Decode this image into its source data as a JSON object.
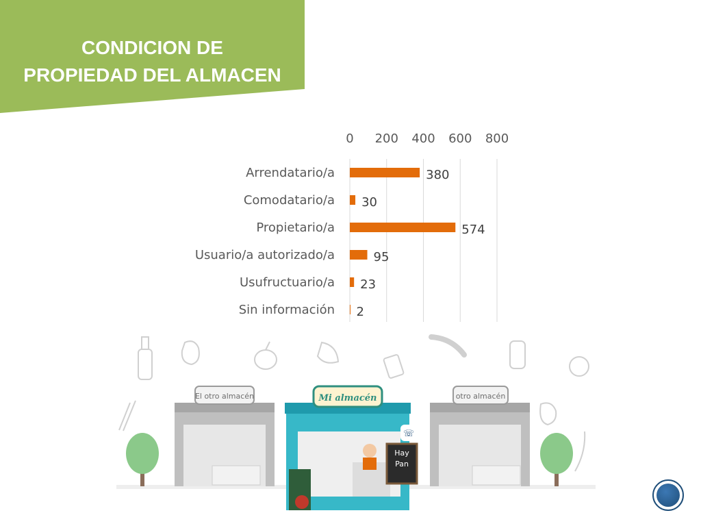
{
  "slide": {
    "title_line1": "CONDICION DE",
    "title_line2": "PROPIEDAD DEL ALMACEN",
    "banner_color": "#9bbb59",
    "accent_color": "#e36c0a"
  },
  "chart_data": {
    "type": "bar",
    "orientation": "horizontal",
    "categories": [
      "Arrendatario/a",
      "Comodatario/a",
      "Propietario/a",
      "Usuario/a autorizado/a",
      "Usufructuario/a",
      "Sin información"
    ],
    "values": [
      380,
      30,
      574,
      95,
      23,
      2
    ],
    "xlim": [
      0,
      800
    ],
    "xticks": [
      0,
      200,
      400,
      600,
      800
    ],
    "x_axis_position": "top",
    "grid": true,
    "title": "",
    "xlabel": "",
    "ylabel": ""
  },
  "scene": {
    "left_store_sign": "El otro almacén",
    "center_store_sign": "Mi almacén",
    "right_store_sign": "otro almacén",
    "board_text_line1": "Hay",
    "board_text_line2": "Pan"
  }
}
